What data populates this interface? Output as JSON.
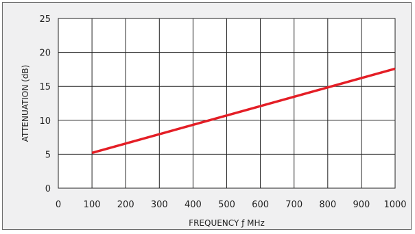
{
  "chart_data": {
    "type": "line",
    "title": "",
    "xlabel": "FREQUENCY ƒ MHz",
    "ylabel": "ATTENUATION (dB)",
    "xlim": [
      0,
      1000
    ],
    "ylim": [
      0,
      25
    ],
    "x_ticks": [
      0,
      100,
      200,
      300,
      400,
      500,
      600,
      700,
      800,
      900,
      1000
    ],
    "y_ticks": [
      0,
      5,
      10,
      15,
      20,
      25
    ],
    "grid": true,
    "series": [
      {
        "color": "#e41e26",
        "x": [
          100,
          1000
        ],
        "y": [
          5.2,
          17.6
        ]
      }
    ]
  }
}
